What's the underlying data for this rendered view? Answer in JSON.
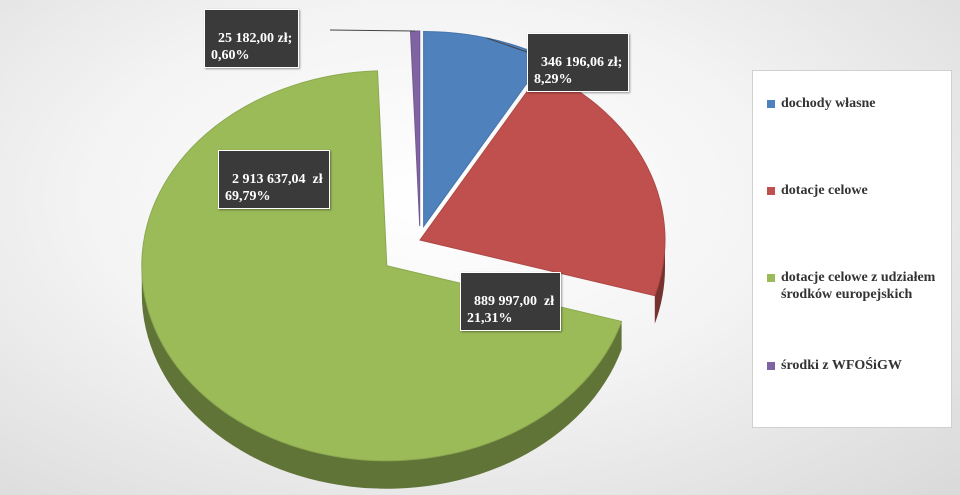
{
  "chart_data": {
    "type": "pie",
    "title": "",
    "slices": [
      {
        "name": "dochody własne",
        "value": 346196.06,
        "percent": 8.29,
        "color": "#4f81bd",
        "label_line1": "346 196,06 zł;",
        "label_line2": "8,29%"
      },
      {
        "name": "dotacje celowe",
        "value": 889997.0,
        "percent": 21.31,
        "color": "#c0504d",
        "label_line1": "889 997,00  zł",
        "label_line2": "21,31%"
      },
      {
        "name": "dotacje celowe z udziałem środków europejskich",
        "value": 2913637.04,
        "percent": 69.79,
        "color": "#9bbb59",
        "label_line1": "2 913 637,04  zł",
        "label_line2": "69,79%"
      },
      {
        "name": "środki z WFOŚiGW",
        "value": 25182.0,
        "percent": 0.6,
        "color": "#8064a2",
        "label_line1": "25 182,00 zł;",
        "label_line2": "0,60%"
      }
    ],
    "legend_position": "right",
    "style": "3d-exploded"
  },
  "legend": {
    "items": [
      {
        "label": "dochody własne",
        "color": "#4f81bd"
      },
      {
        "label": "dotacje celowe",
        "color": "#c0504d"
      },
      {
        "label": "dotacje celowe z udziałem środków europejskich",
        "color": "#9bbb59"
      },
      {
        "label": "środki z WFOŚiGW",
        "color": "#8064a2"
      }
    ]
  }
}
